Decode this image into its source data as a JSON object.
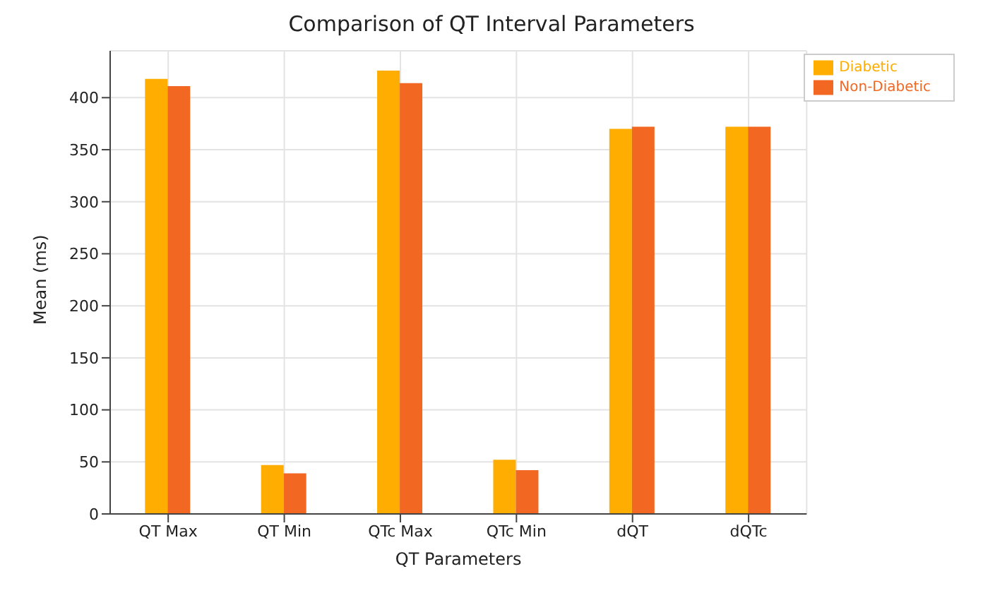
{
  "chart_data": {
    "type": "bar",
    "title": "Comparison of QT Interval Parameters",
    "xlabel": "QT Parameters",
    "ylabel": "Mean (ms)",
    "categories": [
      "QT Max",
      "QT Min",
      "QTc Max",
      "QTc Min",
      "dQT",
      "dQTc"
    ],
    "series": [
      {
        "name": "Diabetic",
        "color": "#ffad00",
        "values": [
          418,
          47,
          426,
          52,
          370,
          372
        ]
      },
      {
        "name": "Non-Diabetic",
        "color": "#f26722",
        "values": [
          411,
          39,
          414,
          42,
          372,
          372
        ]
      }
    ],
    "ylim": [
      0,
      445
    ],
    "yticks": [
      0,
      50,
      100,
      150,
      200,
      250,
      300,
      350,
      400
    ],
    "grid": true,
    "legend": "top right"
  }
}
